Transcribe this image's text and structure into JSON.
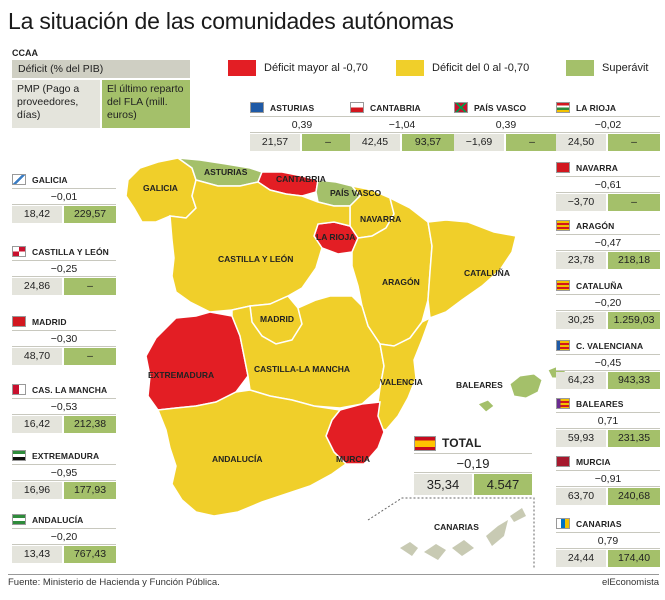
{
  "title": "La situación de las comunidades autónomas",
  "key": {
    "heading": "CCAA",
    "row1": "Déficit (% del PIB)",
    "row2_left": "PMP (Pago a proveedores, días)",
    "row2_right": "El último reparto del FLA (mill. euros)"
  },
  "legend": [
    {
      "label": "Déficit mayor al -0,70",
      "color": "#e31e24"
    },
    {
      "label": "Déficit del 0 al -0,70",
      "color": "#f0cf2a"
    },
    {
      "label": "Superávit",
      "color": "#a4c06a"
    }
  ],
  "colors": {
    "deficit_high": "#e31e24",
    "deficit_low": "#f0cf2a",
    "surplus": "#a4c06a",
    "islands": "#c8cab3"
  },
  "regions": {
    "asturias": {
      "name": "ASTURIAS",
      "deficit": "0,39",
      "pmp": "21,57",
      "fla": "–"
    },
    "cantabria": {
      "name": "CANTABRIA",
      "deficit": "−1,04",
      "pmp": "42,45",
      "fla": "93,57"
    },
    "paisvasco": {
      "name": "PAÍS VASCO",
      "deficit": "0,39",
      "pmp": "−1,69",
      "fla": "–"
    },
    "larioja": {
      "name": "LA RIOJA",
      "deficit": "−0,02",
      "pmp": "24,50",
      "fla": "–"
    },
    "galicia": {
      "name": "GALICIA",
      "deficit": "−0,01",
      "pmp": "18,42",
      "fla": "229,57"
    },
    "castillaleon": {
      "name": "CASTILLA Y LEÓN",
      "deficit": "−0,25",
      "pmp": "24,86",
      "fla": "–"
    },
    "madrid": {
      "name": "MADRID",
      "deficit": "−0,30",
      "pmp": "48,70",
      "fla": "–"
    },
    "casmancha": {
      "name": "CAS. LA MANCHA",
      "deficit": "−0,53",
      "pmp": "16,42",
      "fla": "212,38"
    },
    "extremadura": {
      "name": "EXTREMADURA",
      "deficit": "−0,95",
      "pmp": "16,96",
      "fla": "177,93"
    },
    "andalucia": {
      "name": "ANDALUCÍA",
      "deficit": "−0,20",
      "pmp": "13,43",
      "fla": "767,43"
    },
    "navarra": {
      "name": "NAVARRA",
      "deficit": "−0,61",
      "pmp": "−3,70",
      "fla": "–"
    },
    "aragon": {
      "name": "ARAGÓN",
      "deficit": "−0,47",
      "pmp": "23,78",
      "fla": "218,18"
    },
    "cataluna": {
      "name": "CATALUÑA",
      "deficit": "−0,20",
      "pmp": "30,25",
      "fla": "1.259,03"
    },
    "valenciana": {
      "name": "C. VALENCIANA",
      "deficit": "−0,45",
      "pmp": "64,23",
      "fla": "943,33"
    },
    "baleares": {
      "name": "BALEARES",
      "deficit": "0,71",
      "pmp": "59,93",
      "fla": "231,35"
    },
    "murcia": {
      "name": "MURCIA",
      "deficit": "−0,91",
      "pmp": "63,70",
      "fla": "240,68"
    },
    "canarias": {
      "name": "CANARIAS",
      "deficit": "0,79",
      "pmp": "24,44",
      "fla": "174,40"
    }
  },
  "total": {
    "name": "TOTAL",
    "deficit": "−0,19",
    "pmp": "35,34",
    "fla": "4.547"
  },
  "map_labels": {
    "galicia": "GALICIA",
    "asturias": "ASTURIAS",
    "cantabria": "CANTABRIA",
    "paisvasco": "PAÍS VASCO",
    "navarra": "NAVARRA",
    "larioja": "LA RIOJA",
    "castillaleon": "CASTILLA Y LEÓN",
    "aragon": "ARAGÓN",
    "cataluna": "CATALUÑA",
    "madrid": "MADRID",
    "extremadura": "EXTREMADURA",
    "castillamancha": "CASTILLA-LA MANCHA",
    "valencia": "VALENCIA",
    "baleares": "BALEARES",
    "andalucia": "ANDALUCÍA",
    "murcia": "MURCIA",
    "canarias": "CANARIAS"
  },
  "footer": {
    "source": "Fuente: Ministerio de Hacienda y Función Pública.",
    "brand": "elEconomista"
  }
}
